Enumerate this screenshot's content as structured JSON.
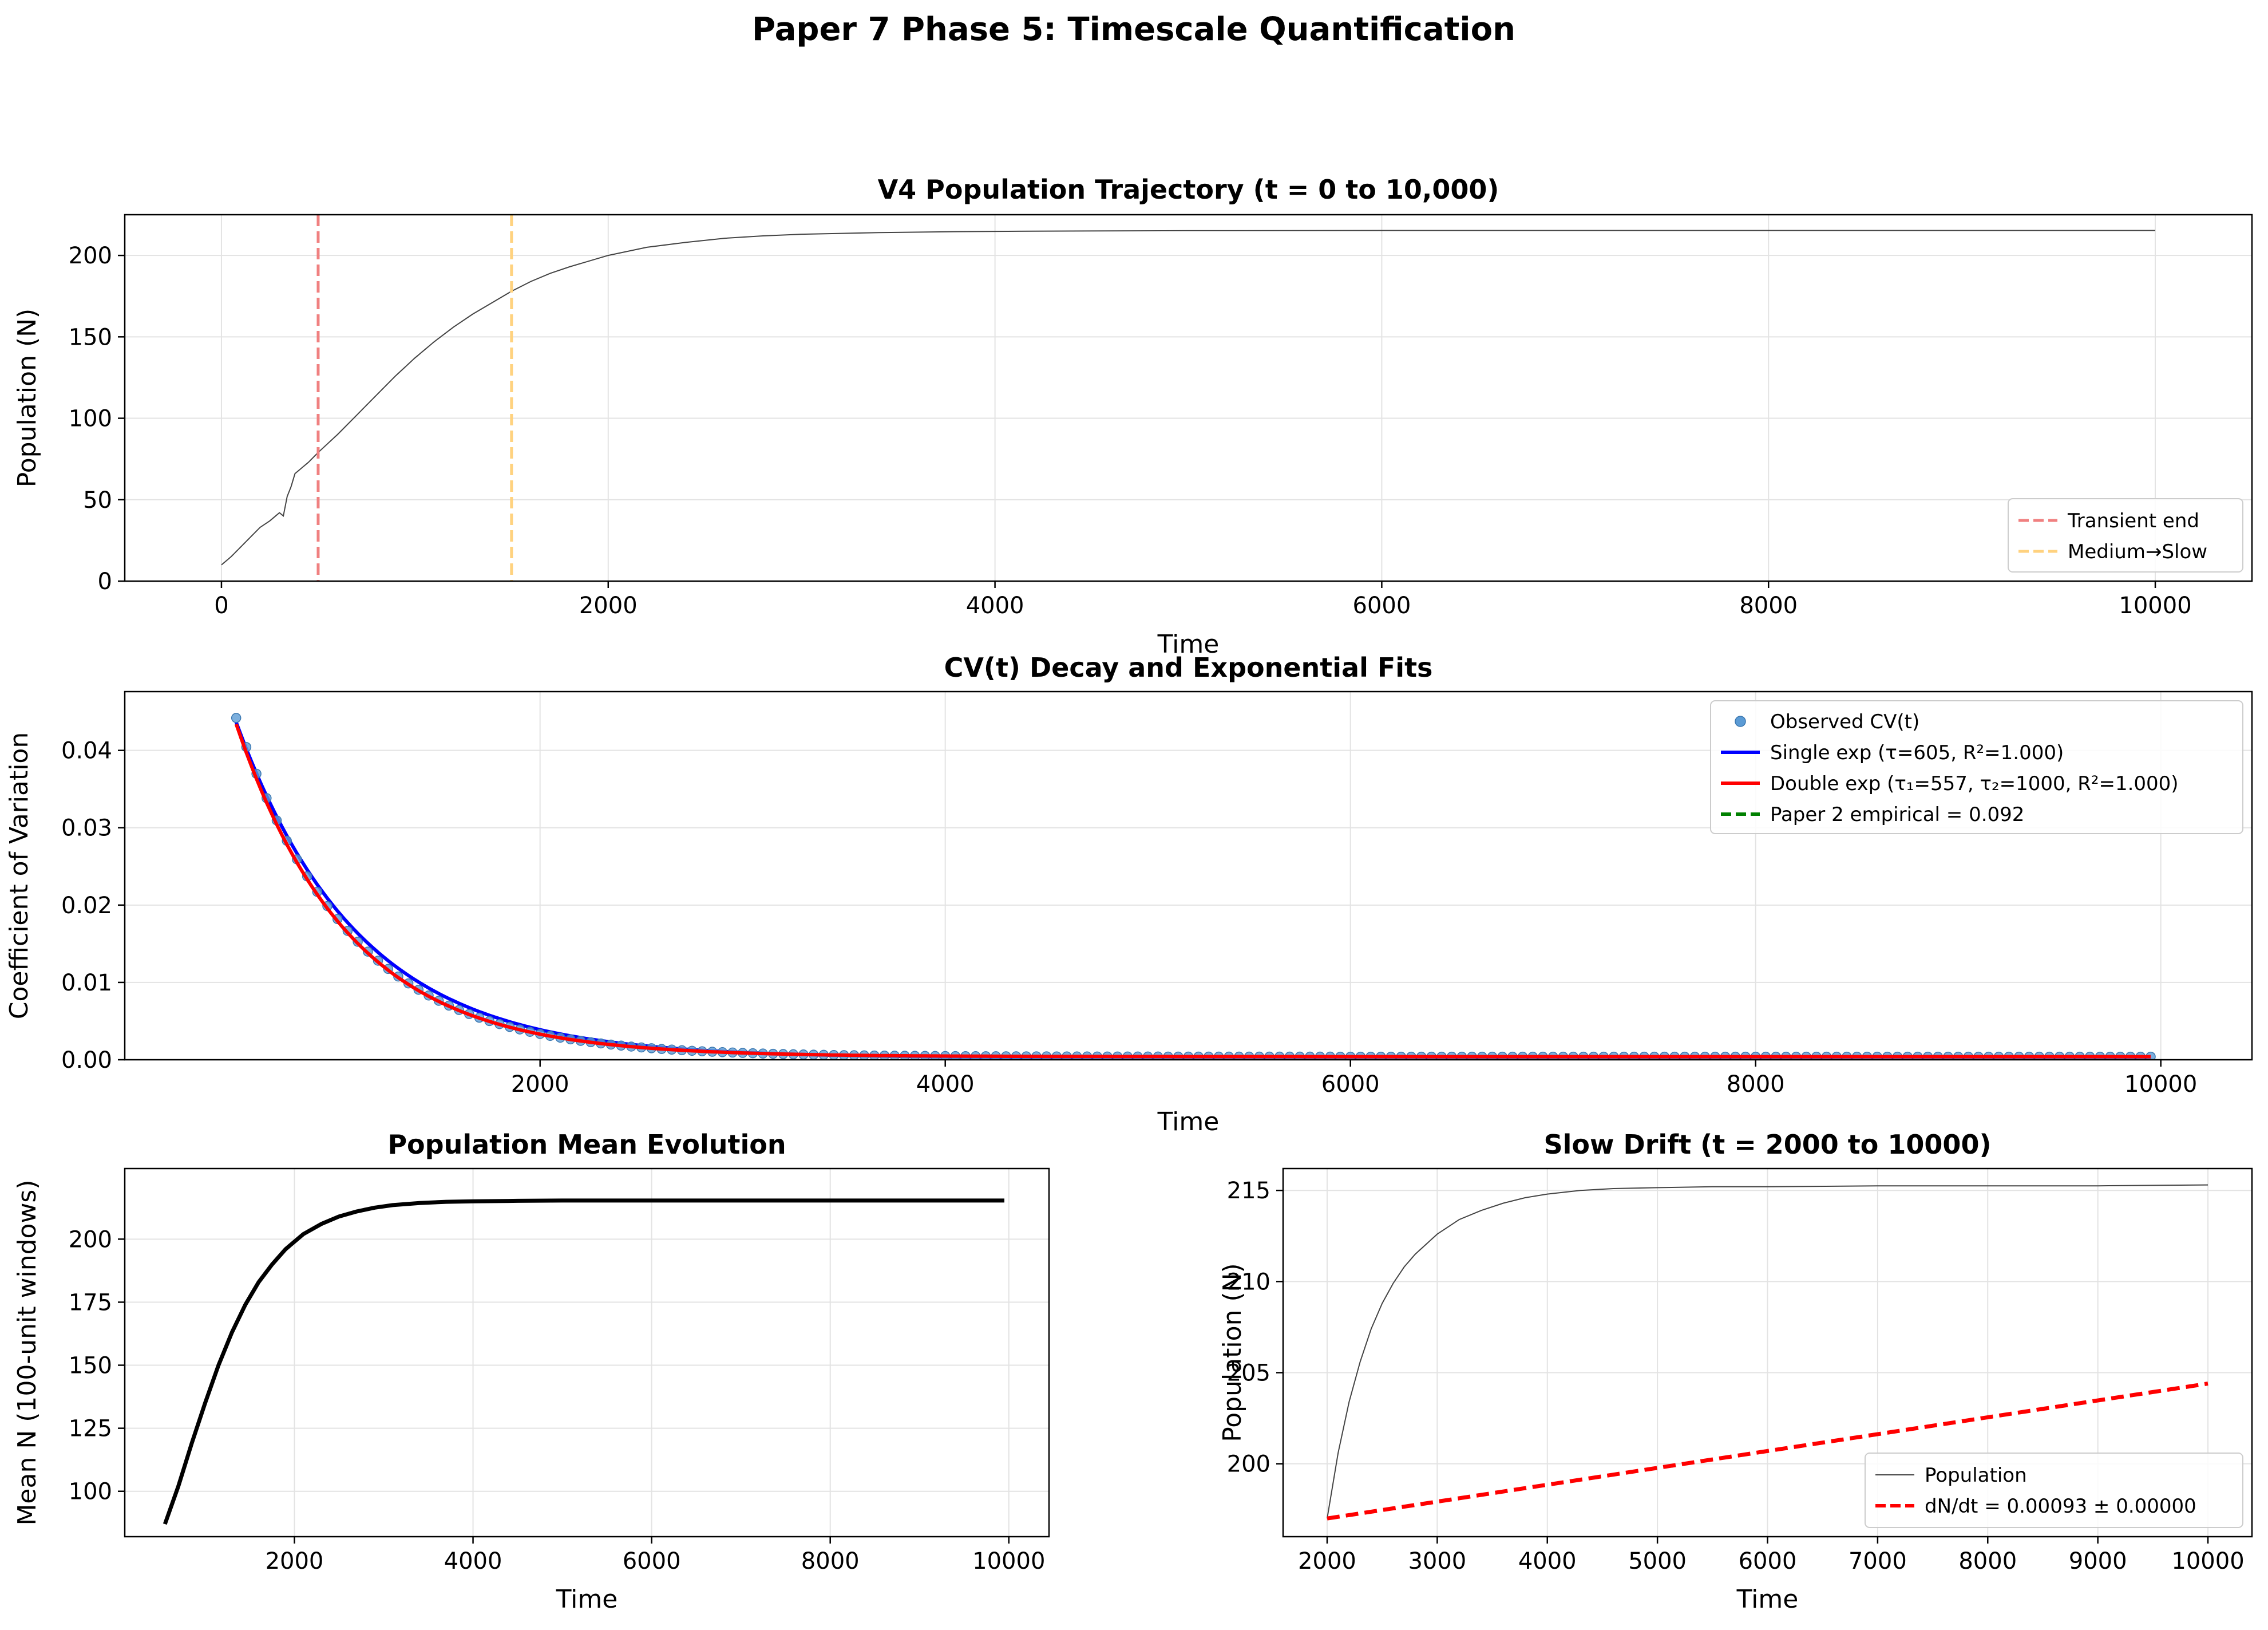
{
  "figure": {
    "suptitle": "Paper 7 Phase 5: Timescale Quantification"
  },
  "chart_data": [
    {
      "type": "line",
      "title": "V4 Population Trajectory (t = 0 to 10,000)",
      "xlabel": "Time",
      "ylabel": "Population (N)",
      "xlim": [
        -500,
        10500
      ],
      "ylim": [
        0,
        225
      ],
      "xticks": [
        0,
        2000,
        4000,
        6000,
        8000,
        10000
      ],
      "yticks": [
        0,
        50,
        100,
        150,
        200
      ],
      "grid": true,
      "legend_position": "lower-right",
      "series": [
        {
          "name": "Population trajectory",
          "color": "#444444",
          "x": [
            0,
            50,
            100,
            150,
            200,
            250,
            280,
            300,
            320,
            340,
            360,
            380,
            400,
            450,
            500,
            600,
            700,
            800,
            900,
            1000,
            1100,
            1200,
            1300,
            1400,
            1500,
            1600,
            1700,
            1800,
            2000,
            2200,
            2400,
            2600,
            2800,
            3000,
            3400,
            3800,
            4200,
            5000,
            6000,
            7000,
            8000,
            9000,
            10000
          ],
          "y": [
            10,
            15,
            21,
            27,
            33,
            37,
            40,
            42,
            40,
            52,
            58,
            66,
            68,
            73,
            79,
            90,
            102,
            114,
            126,
            137,
            147,
            156,
            164,
            171,
            178,
            184,
            189,
            193,
            200,
            205,
            208,
            210.5,
            212,
            213,
            214,
            214.6,
            214.9,
            215.2,
            215.3,
            215.3,
            215.3,
            215.3,
            215.3
          ]
        }
      ],
      "vlines": [
        {
          "name": "Transient end",
          "x": 500,
          "color": "#f08080",
          "style": "dashed"
        },
        {
          "name": "Medium→Slow",
          "x": 1500,
          "color": "#ffd27f",
          "style": "dashed"
        }
      ]
    },
    {
      "type": "scatter",
      "title": "CV(t) Decay and Exponential Fits",
      "xlabel": "Time",
      "ylabel": "Coefficient of Variation",
      "xlim": [
        -50,
        10450
      ],
      "ylim": [
        0,
        0.0476
      ],
      "xticks": [
        2000,
        4000,
        6000,
        8000,
        10000
      ],
      "yticks": [
        0.0,
        0.01,
        0.02,
        0.03,
        0.04
      ],
      "ytick_labels": [
        "0.00",
        "0.01",
        "0.02",
        "0.03",
        "0.04"
      ],
      "grid": true,
      "legend_position": "upper-right",
      "observed": {
        "name": "Observed CV(t)",
        "color": "#5b9bd5",
        "x_start": 500,
        "x_end": 9950,
        "x_step": 50,
        "model": "0.0004 + 0.0438 * exp(-(x - 500) / 555)"
      },
      "series": [
        {
          "name": "Single exp (τ=605, R²=1.000)",
          "color": "#0000ff",
          "tau": 605
        },
        {
          "name": "Double exp (τ₁=557, τ₂=1000, R²=1.000)",
          "color": "#ff0000",
          "tau1": 557,
          "tau2": 1000
        },
        {
          "name": "Paper 2 empirical = 0.092",
          "color": "#008000",
          "value": 0.092,
          "style": "dashed"
        }
      ]
    },
    {
      "type": "line",
      "title": "Population Mean Evolution",
      "xlabel": "Time",
      "ylabel": "Mean N (100-unit windows)",
      "xlim": [
        100,
        10450
      ],
      "ylim": [
        82,
        228
      ],
      "xticks": [
        2000,
        4000,
        6000,
        8000,
        10000
      ],
      "yticks": [
        100,
        125,
        150,
        175,
        200
      ],
      "grid": true,
      "series": [
        {
          "name": "Mean N",
          "color": "#000000",
          "x": [
            550,
            700,
            850,
            1000,
            1150,
            1300,
            1450,
            1600,
            1750,
            1900,
            2100,
            2300,
            2500,
            2700,
            2900,
            3100,
            3400,
            3700,
            4000,
            4500,
            5000,
            6000,
            7000,
            8000,
            9000,
            9950
          ],
          "y": [
            87,
            102,
            119,
            135,
            150,
            163,
            174,
            183,
            190,
            196,
            202,
            206,
            209,
            211,
            212.5,
            213.5,
            214.3,
            214.8,
            215,
            215.2,
            215.3,
            215.3,
            215.3,
            215.3,
            215.3,
            215.3
          ]
        }
      ]
    },
    {
      "type": "line",
      "title": "Slow Drift (t = 2000 to 10000)",
      "xlabel": "Time",
      "ylabel": "Population (N)",
      "xlim": [
        1600,
        10400
      ],
      "ylim": [
        196,
        216.2
      ],
      "xticks": [
        2000,
        3000,
        4000,
        5000,
        6000,
        7000,
        8000,
        9000,
        10000
      ],
      "yticks": [
        200,
        205,
        210,
        215
      ],
      "grid": true,
      "legend_position": "lower-right",
      "series": [
        {
          "name": "Population",
          "color": "#444444",
          "x": [
            2000,
            2100,
            2200,
            2300,
            2400,
            2500,
            2600,
            2700,
            2800,
            3000,
            3200,
            3400,
            3600,
            3800,
            4000,
            4300,
            4600,
            5000,
            5500,
            6000,
            7000,
            8000,
            9000,
            10000
          ],
          "y": [
            197,
            200.6,
            203.4,
            205.6,
            207.4,
            208.8,
            209.9,
            210.8,
            211.5,
            212.6,
            213.4,
            213.9,
            214.3,
            214.6,
            214.8,
            215.0,
            215.1,
            215.15,
            215.2,
            215.2,
            215.25,
            215.25,
            215.25,
            215.3
          ]
        },
        {
          "name": "dN/dt = 0.00093 ± 0.00000",
          "color": "#ff0000",
          "style": "dashed",
          "x": [
            2000,
            10000
          ],
          "y": [
            197,
            204.4
          ]
        }
      ]
    }
  ]
}
